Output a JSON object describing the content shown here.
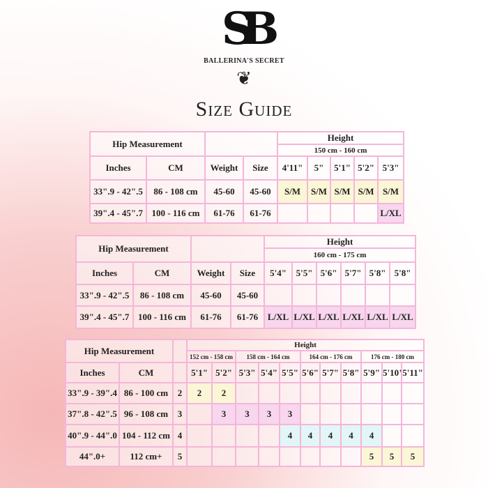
{
  "logo": {
    "monogram": "SB",
    "brand": "BALLERINA'S SECRET",
    "ornament": "❦"
  },
  "title": "Size Guide",
  "colors": {
    "border": "#f4b6da",
    "yellow": "#fbf7d6",
    "pink": "#f7d6ee",
    "cyan": "#e2f6f7"
  },
  "tables": [
    {
      "hip_label": "Hip Measurement",
      "height_label": "Height",
      "ranges": [
        {
          "label": "150 cm - 160 cm",
          "span": 5
        }
      ],
      "columns": [
        "Inches",
        "CM",
        "Weight",
        "Size",
        "4'11\"",
        "5\"",
        "5'1\"",
        "5'2\"",
        "5'3\""
      ],
      "rows": [
        {
          "values": [
            "33\".9 - 42\".5",
            "86 - 108 cm",
            "45-60",
            "45-60",
            "S/M",
            "S/M",
            "S/M",
            "S/M",
            "S/M"
          ],
          "fill": [
            "",
            "",
            "",
            "",
            "yellow",
            "yellow",
            "yellow",
            "yellow",
            "yellow"
          ]
        },
        {
          "values": [
            "39\".4 - 45\".7",
            "100 - 116 cm",
            "61-76",
            "61-76",
            "",
            "",
            "",
            "",
            "L/XL"
          ],
          "fill": [
            "",
            "",
            "",
            "",
            "",
            "",
            "",
            "",
            "pink"
          ]
        }
      ]
    },
    {
      "hip_label": "Hip Measurement",
      "height_label": "Height",
      "ranges": [
        {
          "label": "160 cm - 175 cm",
          "span": 6
        }
      ],
      "columns": [
        "Inches",
        "CM",
        "Weight",
        "Size",
        "5'4\"",
        "5'5\"",
        "5'6\"",
        "5'7\"",
        "5'8\"",
        "5'8\""
      ],
      "rows": [
        {
          "values": [
            "33\".9 - 42\".5",
            "86 - 108 cm",
            "45-60",
            "45-60",
            "",
            "",
            "",
            "",
            "",
            ""
          ],
          "fill": []
        },
        {
          "values": [
            "39\".4 - 45\".7",
            "100 - 116 cm",
            "61-76",
            "61-76",
            "L/XL",
            "L/XL",
            "L/XL",
            "L/XL",
            "L/XL",
            "L/XL"
          ],
          "fill": [
            "",
            "",
            "",
            "",
            "pink",
            "pink",
            "pink",
            "pink",
            "pink",
            "pink"
          ]
        }
      ]
    },
    {
      "hip_label": "Hip Measurement",
      "height_label": "Height",
      "ranges": [
        {
          "label": "152 cm - 158 cm",
          "span": 2
        },
        {
          "label": "158 cm - 164 cm",
          "span": 3
        },
        {
          "label": "164 cm - 176 cm",
          "span": 3
        },
        {
          "label": "176 cm - 180 cm",
          "span": 3
        }
      ],
      "columns": [
        "Inches",
        "CM",
        "",
        "5'1\"",
        "5'2\"",
        "5'3\"",
        "5'4\"",
        "5'5\"",
        "5'6\"",
        "5'7\"",
        "5'8\"",
        "5'9\"",
        "5'10\"",
        "5'11\""
      ],
      "rows": [
        {
          "values": [
            "33\".9 - 39\".4",
            "86 - 100 cm",
            "2",
            "2",
            "2",
            "",
            "",
            "",
            "",
            "",
            "",
            "",
            "",
            ""
          ],
          "fill": [
            "",
            "",
            "",
            "yellow",
            "yellow"
          ]
        },
        {
          "values": [
            "37\".8 - 42\".5",
            "96 - 108 cm",
            "3",
            "",
            "3",
            "3",
            "3",
            "3",
            "",
            "",
            "",
            "",
            "",
            ""
          ],
          "fill": [
            "",
            "",
            "",
            "",
            "pink",
            "pink",
            "pink",
            "pink"
          ]
        },
        {
          "values": [
            "40\".9 - 44\".0",
            "104 - 112 cm",
            "4",
            "",
            "",
            "",
            "",
            "4",
            "4",
            "4",
            "4",
            "4",
            "",
            ""
          ],
          "fill": [
            "",
            "",
            "",
            "",
            "",
            "",
            "",
            "cyan",
            "cyan",
            "cyan",
            "cyan",
            "cyan"
          ]
        },
        {
          "values": [
            "44\".0+",
            "112 cm+",
            "5",
            "",
            "",
            "",
            "",
            "",
            "",
            "",
            "",
            "5",
            "5",
            "5"
          ],
          "fill": [
            "",
            "",
            "",
            "",
            "",
            "",
            "",
            "",
            "",
            "",
            "",
            "yellow",
            "yellow",
            "yellow"
          ]
        }
      ]
    }
  ]
}
